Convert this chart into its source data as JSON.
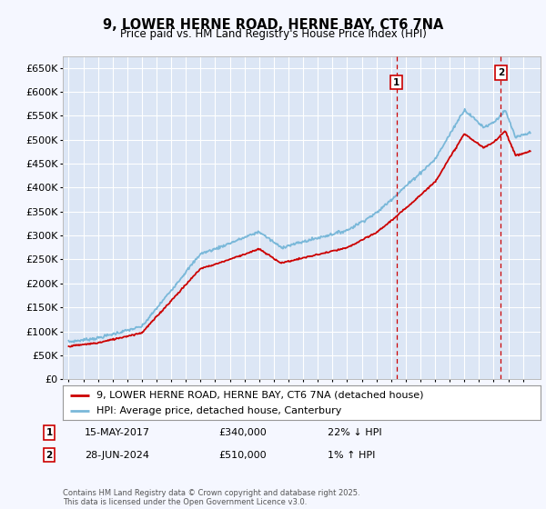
{
  "title": "9, LOWER HERNE ROAD, HERNE BAY, CT6 7NA",
  "subtitle": "Price paid vs. HM Land Registry's House Price Index (HPI)",
  "ylim": [
    0,
    675000
  ],
  "yticks": [
    0,
    50000,
    100000,
    150000,
    200000,
    250000,
    300000,
    350000,
    400000,
    450000,
    500000,
    550000,
    600000,
    650000
  ],
  "ytick_labels": [
    "£0",
    "£50K",
    "£100K",
    "£150K",
    "£200K",
    "£250K",
    "£300K",
    "£350K",
    "£400K",
    "£450K",
    "£500K",
    "£550K",
    "£600K",
    "£650K"
  ],
  "hpi_color": "#7ab8d9",
  "sale_color": "#cc0000",
  "dashed_color": "#cc0000",
  "background_color": "#f5f7ff",
  "plot_bg_color": "#dce6f5",
  "grid_color": "#ffffff",
  "marker1_x": 2017.37,
  "marker1_y": 340000,
  "marker1_label": "1",
  "marker1_date": "15-MAY-2017",
  "marker1_price": "£340,000",
  "marker1_hpi": "22% ↓ HPI",
  "marker2_x": 2024.49,
  "marker2_y": 510000,
  "marker2_label": "2",
  "marker2_date": "28-JUN-2024",
  "marker2_price": "£510,000",
  "marker2_hpi": "1% ↑ HPI",
  "sale_label": "9, LOWER HERNE ROAD, HERNE BAY, CT6 7NA (detached house)",
  "hpi_label": "HPI: Average price, detached house, Canterbury",
  "footer": "Contains HM Land Registry data © Crown copyright and database right 2025.\nThis data is licensed under the Open Government Licence v3.0.",
  "xlim_left": 1994.6,
  "xlim_right": 2027.2
}
